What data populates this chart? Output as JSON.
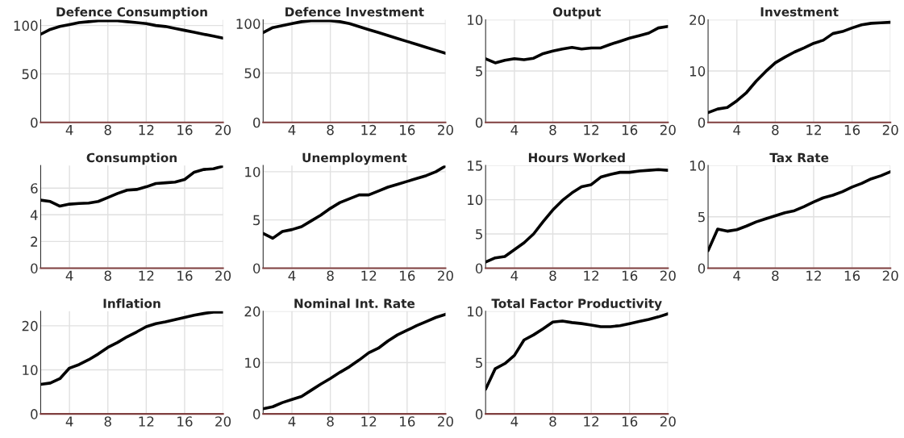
{
  "chart_data": [
    {
      "type": "line",
      "title": "Defence Consumption",
      "x": [
        1,
        2,
        3,
        4,
        5,
        6,
        7,
        8,
        9,
        10,
        11,
        12,
        13,
        14,
        15,
        16,
        17,
        18,
        19,
        20
      ],
      "series": [
        {
          "color": "#000000",
          "values": [
            91,
            96,
            99,
            101,
            103,
            104,
            105,
            105,
            105,
            104,
            103,
            102,
            100,
            99,
            97,
            95,
            93,
            91,
            89,
            87
          ]
        }
      ],
      "xlim": [
        1,
        20
      ],
      "xticks": [
        4,
        8,
        12,
        16,
        20
      ],
      "ylim": [
        0,
        106
      ],
      "yticks": [
        0,
        50,
        100
      ],
      "grid": true
    },
    {
      "type": "line",
      "title": "Defence Investment",
      "x": [
        1,
        2,
        3,
        4,
        5,
        6,
        7,
        8,
        9,
        10,
        11,
        12,
        13,
        14,
        15,
        16,
        17,
        18,
        19,
        20
      ],
      "series": [
        {
          "color": "#000000",
          "values": [
            91,
            96,
            98,
            100,
            102,
            103,
            103,
            103,
            102,
            100,
            97,
            94,
            91,
            88,
            85,
            82,
            79,
            76,
            73,
            70
          ]
        }
      ],
      "xlim": [
        1,
        20
      ],
      "xticks": [
        4,
        8,
        12,
        16,
        20
      ],
      "ylim": [
        0,
        104
      ],
      "yticks": [
        0,
        50,
        100
      ],
      "grid": true
    },
    {
      "type": "line",
      "title": "Output",
      "x": [
        1,
        2,
        3,
        4,
        5,
        6,
        7,
        8,
        9,
        10,
        11,
        12,
        13,
        14,
        15,
        16,
        17,
        18,
        19,
        20
      ],
      "series": [
        {
          "color": "#000000",
          "values": [
            6.2,
            5.8,
            6.05,
            6.2,
            6.1,
            6.25,
            6.7,
            6.95,
            7.15,
            7.3,
            7.15,
            7.25,
            7.25,
            7.6,
            7.9,
            8.2,
            8.45,
            8.7,
            9.2,
            9.35
          ]
        }
      ],
      "xlim": [
        1,
        20
      ],
      "xticks": [
        4,
        8,
        12,
        16,
        20
      ],
      "ylim": [
        0,
        10
      ],
      "yticks": [
        0,
        5,
        10
      ],
      "grid": true
    },
    {
      "type": "line",
      "title": "Investment",
      "x": [
        1,
        2,
        3,
        4,
        5,
        6,
        7,
        8,
        9,
        10,
        11,
        12,
        13,
        14,
        15,
        16,
        17,
        18,
        19,
        20
      ],
      "series": [
        {
          "color": "#000000",
          "values": [
            1.9,
            2.6,
            2.9,
            4.2,
            5.8,
            8.0,
            9.9,
            11.6,
            12.7,
            13.7,
            14.5,
            15.4,
            16.0,
            17.3,
            17.7,
            18.4,
            19.0,
            19.3,
            19.4,
            19.5
          ]
        }
      ],
      "xlim": [
        1,
        20
      ],
      "xticks": [
        4,
        8,
        12,
        16,
        20
      ],
      "ylim": [
        0,
        20
      ],
      "yticks": [
        0,
        10,
        20
      ],
      "grid": true
    },
    {
      "type": "line",
      "title": "Consumption",
      "x": [
        1,
        2,
        3,
        4,
        5,
        6,
        7,
        8,
        9,
        10,
        11,
        12,
        13,
        14,
        15,
        16,
        17,
        18,
        19,
        20
      ],
      "series": [
        {
          "color": "#000000",
          "values": [
            5.1,
            5.0,
            4.65,
            4.8,
            4.85,
            4.88,
            5.0,
            5.3,
            5.6,
            5.85,
            5.9,
            6.1,
            6.35,
            6.4,
            6.45,
            6.65,
            7.2,
            7.4,
            7.45,
            7.65
          ]
        }
      ],
      "xlim": [
        1,
        20
      ],
      "xticks": [
        4,
        8,
        12,
        16,
        20
      ],
      "ylim": [
        0,
        7.7
      ],
      "yticks": [
        0,
        2,
        4,
        6
      ],
      "grid": true
    },
    {
      "type": "line",
      "title": "Unemployment",
      "x": [
        1,
        2,
        3,
        4,
        5,
        6,
        7,
        8,
        9,
        10,
        11,
        12,
        13,
        14,
        15,
        16,
        17,
        18,
        19,
        20
      ],
      "series": [
        {
          "color": "#000000",
          "values": [
            3.6,
            3.1,
            3.8,
            4.0,
            4.3,
            4.9,
            5.5,
            6.2,
            6.8,
            7.2,
            7.6,
            7.6,
            8.0,
            8.4,
            8.7,
            9.0,
            9.3,
            9.6,
            10.0,
            10.6
          ]
        }
      ],
      "xlim": [
        1,
        20
      ],
      "xticks": [
        4,
        8,
        12,
        16,
        20
      ],
      "ylim": [
        0,
        10.65
      ],
      "yticks": [
        0,
        5,
        10
      ],
      "grid": true
    },
    {
      "type": "line",
      "title": "Hours Worked",
      "x": [
        1,
        2,
        3,
        4,
        5,
        6,
        7,
        8,
        9,
        10,
        11,
        12,
        13,
        14,
        15,
        16,
        17,
        18,
        19,
        20
      ],
      "series": [
        {
          "color": "#000000",
          "values": [
            0.9,
            1.5,
            1.7,
            2.7,
            3.7,
            5.0,
            6.8,
            8.5,
            9.9,
            11.0,
            11.9,
            12.2,
            13.3,
            13.7,
            14.0,
            14.0,
            14.2,
            14.3,
            14.4,
            14.3
          ]
        }
      ],
      "xlim": [
        1,
        20
      ],
      "xticks": [
        4,
        8,
        12,
        16,
        20
      ],
      "ylim": [
        0,
        15
      ],
      "yticks": [
        0,
        5,
        10,
        15
      ],
      "grid": true
    },
    {
      "type": "line",
      "title": "Tax Rate",
      "x": [
        1,
        2,
        3,
        4,
        5,
        6,
        7,
        8,
        9,
        10,
        11,
        12,
        13,
        14,
        15,
        16,
        17,
        18,
        19,
        20
      ],
      "series": [
        {
          "color": "#000000",
          "values": [
            1.7,
            3.8,
            3.6,
            3.75,
            4.1,
            4.5,
            4.8,
            5.1,
            5.4,
            5.6,
            6.0,
            6.45,
            6.85,
            7.1,
            7.45,
            7.9,
            8.25,
            8.7,
            9.0,
            9.4
          ]
        }
      ],
      "xlim": [
        1,
        20
      ],
      "xticks": [
        4,
        8,
        12,
        16,
        20
      ],
      "ylim": [
        0,
        10
      ],
      "yticks": [
        0,
        5,
        10
      ],
      "grid": true
    },
    {
      "type": "line",
      "title": "Inflation",
      "x": [
        1,
        2,
        3,
        4,
        5,
        6,
        7,
        8,
        9,
        10,
        11,
        12,
        13,
        14,
        15,
        16,
        17,
        18,
        19,
        20
      ],
      "series": [
        {
          "color": "#000000",
          "values": [
            6.7,
            7.0,
            8.0,
            10.4,
            11.2,
            12.3,
            13.6,
            15.1,
            16.2,
            17.5,
            18.6,
            19.8,
            20.5,
            20.9,
            21.4,
            21.9,
            22.4,
            22.8,
            23.1,
            23.1
          ]
        }
      ],
      "xlim": [
        1,
        20
      ],
      "xticks": [
        4,
        8,
        12,
        16,
        20
      ],
      "ylim": [
        0,
        23.3
      ],
      "yticks": [
        0,
        10,
        20
      ],
      "grid": true
    },
    {
      "type": "line",
      "title": "Nominal Int. Rate",
      "x": [
        1,
        2,
        3,
        4,
        5,
        6,
        7,
        8,
        9,
        10,
        11,
        12,
        13,
        14,
        15,
        16,
        17,
        18,
        19,
        20
      ],
      "series": [
        {
          "color": "#000000",
          "values": [
            1.0,
            1.4,
            2.2,
            2.8,
            3.4,
            4.6,
            5.8,
            6.9,
            8.1,
            9.2,
            10.5,
            11.9,
            12.8,
            14.2,
            15.4,
            16.3,
            17.2,
            18.0,
            18.8,
            19.4
          ]
        }
      ],
      "xlim": [
        1,
        20
      ],
      "xticks": [
        4,
        8,
        12,
        16,
        20
      ],
      "ylim": [
        0,
        20
      ],
      "yticks": [
        0,
        10,
        20
      ],
      "grid": true
    },
    {
      "type": "line",
      "title": "Total Factor Productivity",
      "x": [
        1,
        2,
        3,
        4,
        5,
        6,
        7,
        8,
        9,
        10,
        11,
        12,
        13,
        14,
        15,
        16,
        17,
        18,
        19,
        20
      ],
      "series": [
        {
          "color": "#000000",
          "values": [
            2.4,
            4.4,
            4.9,
            5.7,
            7.2,
            7.7,
            8.3,
            8.95,
            9.05,
            8.9,
            8.8,
            8.65,
            8.5,
            8.5,
            8.6,
            8.8,
            9.0,
            9.2,
            9.45,
            9.75
          ]
        }
      ],
      "xlim": [
        1,
        20
      ],
      "xticks": [
        4,
        8,
        12,
        16,
        20
      ],
      "ylim": [
        0,
        10
      ],
      "yticks": [
        0,
        5,
        10
      ],
      "grid": true
    }
  ]
}
